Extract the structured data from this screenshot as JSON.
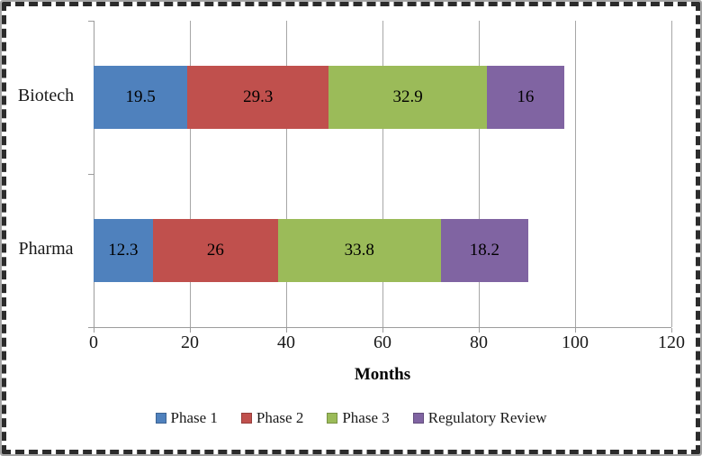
{
  "chart_data": {
    "type": "bar",
    "orientation": "horizontal",
    "stacked": true,
    "categories": [
      "Biotech",
      "Pharma"
    ],
    "series": [
      {
        "name": "Phase 1",
        "color": "#4F81BD",
        "values": [
          19.5,
          12.3
        ]
      },
      {
        "name": "Phase 2",
        "color": "#C0504D",
        "values": [
          29.3,
          26
        ]
      },
      {
        "name": "Phase 3",
        "color": "#9BBB59",
        "values": [
          32.9,
          33.8
        ]
      },
      {
        "name": "Regulatory Review",
        "color": "#8064A2",
        "values": [
          16,
          18.2
        ]
      }
    ],
    "title": "",
    "xlabel": "Months",
    "ylabel": "",
    "xlim": [
      0,
      120
    ],
    "xticks": [
      0,
      20,
      40,
      60,
      80,
      100,
      120
    ],
    "grid": true,
    "value_labels": true,
    "legend_position": "bottom",
    "axis_color": "#9c9c9c",
    "gridline_color": "#a6a6a6",
    "frame_style": "dashed-selection-border"
  }
}
